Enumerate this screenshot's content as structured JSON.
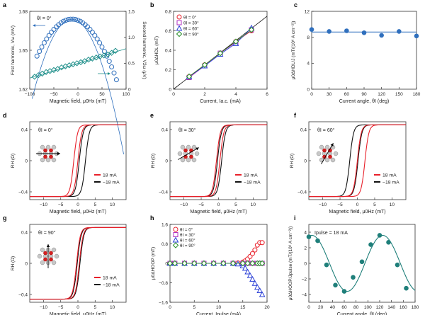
{
  "chart_data": [
    {
      "panel": "a",
      "type": "line",
      "xlabel": "Magnetic field, μ0Hx (mT)",
      "ylabel": "First harmonic, Vω (mV)",
      "ylabel2": "Second harmonic, V2ω (μV)",
      "xlim": [
        -100,
        100
      ],
      "ylim": [
        1.62,
        1.68
      ],
      "ylim2": [
        0,
        1.5
      ],
      "xticks": [
        "−100",
        "−50",
        "0",
        "50",
        "100"
      ],
      "yticks": [
        "1.62",
        "1.65",
        "1.68"
      ],
      "yticks2": [
        "0",
        "0.5",
        "1.0",
        "1.5"
      ],
      "annotation": "θI = 0°",
      "series": [
        {
          "name": "First harmonic",
          "axis": "left",
          "color": "#2f6fbd",
          "x": [
            -85,
            -80,
            -75,
            -70,
            -65,
            -60,
            -55,
            -50,
            -45,
            -40,
            -35,
            -30,
            -25,
            -20,
            -15,
            -10,
            -5,
            0,
            5,
            10,
            15,
            20,
            25,
            30,
            35,
            40,
            45,
            50,
            55,
            60,
            65,
            70,
            75,
            80
          ],
          "y": [
            1.6455,
            1.6491,
            1.6525,
            1.6557,
            1.6587,
            1.6614,
            1.6639,
            1.6661,
            1.6681,
            1.6697,
            1.6711,
            1.6723,
            1.6731,
            1.6737,
            1.6739,
            1.6739,
            1.6737,
            1.6731,
            1.6723,
            1.6711,
            1.6697,
            1.6681,
            1.6661,
            1.6639,
            1.6614,
            1.6587,
            1.6557,
            1.6525,
            1.6491,
            1.6455,
            1.6415,
            1.6372,
            1.6325,
            1.6273
          ]
        },
        {
          "name": "Second harmonic",
          "axis": "right",
          "color": "#1f8f8a",
          "x": [
            -90,
            -82,
            -74,
            -66,
            -58,
            -50,
            -42,
            -34,
            -26,
            -18,
            -10,
            -2,
            6,
            14,
            22,
            30,
            38,
            46,
            54,
            62,
            70,
            78
          ],
          "y": [
            0.24,
            0.27,
            0.3,
            0.33,
            0.35,
            0.37,
            0.39,
            0.42,
            0.44,
            0.46,
            0.48,
            0.5,
            0.52,
            0.54,
            0.57,
            0.59,
            0.61,
            0.63,
            0.65,
            0.67,
            0.7,
            0.74
          ]
        }
      ]
    },
    {
      "panel": "b",
      "type": "line",
      "xlabel": "Current, Ia.c. (mA)",
      "ylabel": "μ0ΔHDL (mT)",
      "xlim": [
        0,
        6
      ],
      "ylim": [
        0,
        0.8
      ],
      "xticks": [
        "0",
        "2",
        "4",
        "6"
      ],
      "yticks": [
        "0",
        "0.2",
        "0.4",
        "0.6",
        "0.8"
      ],
      "series": [
        {
          "name": "θI = 0°",
          "color": "#e8202a",
          "marker": "circle",
          "x": [
            1,
            2,
            3,
            4,
            5
          ],
          "y": [
            0.13,
            0.25,
            0.37,
            0.49,
            0.6
          ]
        },
        {
          "name": "θI = 30°",
          "color": "#b230c0",
          "marker": "square",
          "x": [
            1,
            2,
            3,
            4,
            5
          ],
          "y": [
            0.12,
            0.24,
            0.37,
            0.48,
            0.61
          ]
        },
        {
          "name": "θI = 60°",
          "color": "#2a3fd6",
          "marker": "triangle",
          "x": [
            1,
            2,
            3,
            4,
            5
          ],
          "y": [
            0.13,
            0.24,
            0.36,
            0.47,
            0.63
          ]
        },
        {
          "name": "θI = 90°",
          "color": "#2a8f2a",
          "marker": "diamond",
          "x": [
            1,
            2,
            3,
            4,
            5
          ],
          "y": [
            0.13,
            0.25,
            0.37,
            0.49,
            0.61
          ]
        }
      ]
    },
    {
      "panel": "c",
      "type": "scatter",
      "xlabel": "Current angle, θI (deg)",
      "ylabel": "μ0ΔHDL/J (mT/(10⁶ A cm⁻²))",
      "xlim": [
        0,
        180
      ],
      "ylim": [
        0,
        12
      ],
      "xticks": [
        "0",
        "30",
        "60",
        "90",
        "120",
        "150",
        "180"
      ],
      "yticks": [
        "0",
        "4",
        "8",
        "12"
      ],
      "fit": 8.8,
      "series": [
        {
          "color": "#2f6fbd",
          "x": [
            0,
            30,
            60,
            90,
            120,
            150,
            180
          ],
          "y": [
            9.2,
            8.9,
            9.0,
            8.7,
            8.3,
            8.9,
            8.2
          ]
        }
      ]
    },
    {
      "panel": "d",
      "type": "line",
      "annotation": "θI = 0°",
      "xlabel": "Magnetic field, μ0Hz (mT)",
      "ylabel": "RH (Ω)",
      "xlim": [
        -14,
        14
      ],
      "ylim": [
        -0.5,
        0.5
      ],
      "xticks": [
        "−10",
        "−5",
        "0",
        "5",
        "10"
      ],
      "yticks": [
        "−0.4",
        "0",
        "0.4"
      ],
      "legend": [
        "18 mA",
        "−18 mA"
      ],
      "legend_colors": [
        "#e8202a",
        "#111111"
      ],
      "loops": {
        "red": [
          -1.2,
          0.0
        ],
        "black": [
          0.4,
          2.2
        ]
      }
    },
    {
      "panel": "e",
      "type": "line",
      "annotation": "θI = 30°",
      "xlabel": "Magnetic field, μ0Hz (mT)",
      "ylabel": "RH (Ω)",
      "xlim": [
        -14,
        14
      ],
      "ylim": [
        -0.5,
        0.5
      ],
      "xticks": [
        "−10",
        "−5",
        "0",
        "5",
        "10"
      ],
      "yticks": [
        "−0.4",
        "0",
        "0.4"
      ],
      "legend": [
        "18 mA",
        "−18 mA"
      ],
      "legend_colors": [
        "#e8202a",
        "#111111"
      ],
      "loops": {
        "red": [
          -0.6,
          0.4
        ],
        "black": [
          -0.3,
          0.9
        ]
      }
    },
    {
      "panel": "f",
      "type": "line",
      "annotation": "θI = 60°",
      "xlabel": "Magnetic field, μ0Hz (mT)",
      "ylabel": "RH (Ω)",
      "xlim": [
        -14,
        14
      ],
      "ylim": [
        -0.5,
        0.5
      ],
      "xticks": [
        "−10",
        "−5",
        "0",
        "5",
        "10"
      ],
      "yticks": [
        "−0.4",
        "0",
        "0.4"
      ],
      "legend": [
        "18 mA",
        "−18 mA"
      ],
      "legend_colors": [
        "#e8202a",
        "#111111"
      ],
      "loops": {
        "red": [
          0.0,
          2.2
        ],
        "black": [
          -2.2,
          0.2
        ]
      }
    },
    {
      "panel": "g",
      "type": "line",
      "annotation": "θI = 90°",
      "xlabel": "Magnetic field, μ0Hz (mT)",
      "ylabel": "RH (Ω)",
      "xlim": [
        -14,
        14
      ],
      "ylim": [
        -0.5,
        0.5
      ],
      "xticks": [
        "−10",
        "−5",
        "0",
        "5",
        "10"
      ],
      "yticks": [
        "−0.4",
        "0",
        "0.4"
      ],
      "legend": [
        "18 mA",
        "−18 mA"
      ],
      "legend_colors": [
        "#e8202a",
        "#111111"
      ],
      "loops": {
        "red": [
          -0.4,
          0.4
        ],
        "black": [
          -0.2,
          0.6
        ]
      }
    },
    {
      "panel": "h",
      "type": "line",
      "xlabel": "Current, Ipulse (mA)",
      "ylabel": "μ0ΔHOOP (mT)",
      "xlim": [
        0,
        20
      ],
      "ylim": [
        -1.6,
        1.6
      ],
      "xticks": [
        "0",
        "5",
        "10",
        "15",
        "20"
      ],
      "yticks": [
        "−1.6",
        "−0.8",
        "0",
        "0.8",
        "1.6"
      ],
      "series": [
        {
          "name": "θI = 0°",
          "color": "#e8202a",
          "marker": "circle",
          "x": [
            0,
            1,
            3,
            5,
            7,
            9,
            11,
            13,
            14,
            15,
            15.5,
            16,
            16.5,
            17,
            17.5,
            18,
            18.5,
            19
          ],
          "y": [
            0,
            0,
            0,
            0,
            0,
            0,
            0,
            0,
            0.02,
            0.05,
            0.1,
            0.18,
            0.28,
            0.4,
            0.55,
            0.75,
            0.85,
            0.85
          ]
        },
        {
          "name": "θI = 30°",
          "color": "#b230c0",
          "marker": "square",
          "x": [
            0,
            1,
            3,
            5,
            7,
            9,
            11,
            13,
            15,
            16,
            17,
            18,
            18.5,
            19
          ],
          "y": [
            0,
            0,
            0,
            0,
            0,
            0,
            0,
            0,
            0,
            0,
            0,
            0,
            0,
            0
          ]
        },
        {
          "name": "θI = 60°",
          "color": "#2a3fd6",
          "marker": "triangle",
          "x": [
            0,
            1,
            3,
            5,
            7,
            9,
            11,
            13,
            14,
            15,
            15.5,
            16,
            16.5,
            17,
            17.5,
            18,
            18.5,
            19
          ],
          "y": [
            0,
            0,
            0,
            0,
            0,
            0,
            0,
            0,
            -0.02,
            -0.1,
            -0.2,
            -0.35,
            -0.5,
            -0.65,
            -0.82,
            -0.98,
            -1.12,
            -1.28
          ]
        },
        {
          "name": "θI = 90°",
          "color": "#2a8f2a",
          "marker": "diamond",
          "x": [
            0,
            1,
            3,
            5,
            7,
            9,
            11,
            13,
            15,
            16,
            17,
            18,
            18.5,
            19
          ],
          "y": [
            0,
            0,
            0,
            0,
            0,
            0,
            0,
            0,
            0,
            0,
            0,
            0,
            0,
            0
          ]
        }
      ]
    },
    {
      "panel": "i",
      "type": "line",
      "xlabel": "Current angle, θI (deg)",
      "ylabel": "μ0ΔHOOP/Jpulse (mT/(10⁶ A cm⁻²))",
      "xlim": [
        0,
        180
      ],
      "ylim": [
        -5,
        5
      ],
      "xticks": [
        "0",
        "20",
        "40",
        "60",
        "80",
        "100",
        "120",
        "140",
        "160",
        "180"
      ],
      "yticks": [
        "−4",
        "−2",
        "0",
        "2",
        "4"
      ],
      "annotation": "Ipulse = 18 mA",
      "series": [
        {
          "color": "#1f7f7a",
          "x": [
            0,
            15,
            30,
            45,
            60,
            75,
            90,
            105,
            120,
            135,
            150,
            165
          ],
          "y": [
            3.4,
            2.9,
            -0.2,
            -2.8,
            -3.6,
            -1.8,
            0.2,
            2.4,
            3.6,
            2.7,
            -0.2,
            -3.2
          ]
        }
      ]
    }
  ],
  "panel_letters": [
    "a",
    "b",
    "c",
    "d",
    "e",
    "f",
    "g",
    "h",
    "i"
  ]
}
